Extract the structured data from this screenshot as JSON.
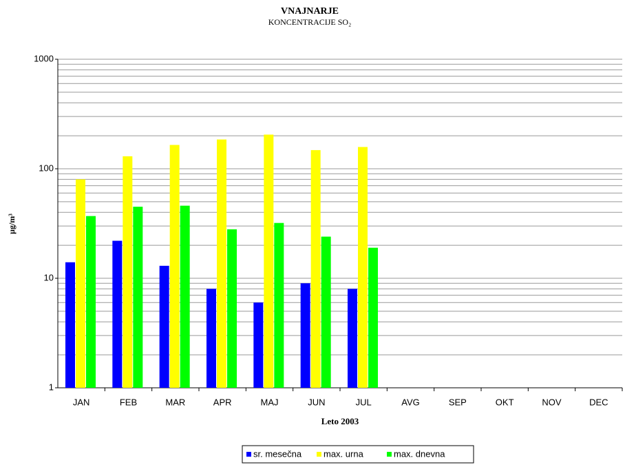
{
  "chart_data": {
    "type": "bar",
    "title": "VNAJNARJE",
    "subtitle": "KONCENTRACIJE SO₂",
    "x_label": "Leto 2003",
    "y_label": "μg/m³",
    "categories": [
      "JAN",
      "FEB",
      "MAR",
      "APR",
      "MAJ",
      "JUN",
      "JUL",
      "AVG",
      "SEP",
      "OKT",
      "NOV",
      "DEC"
    ],
    "series": [
      {
        "name": "sr. mesečna",
        "color": "#0000ff",
        "values": [
          14,
          22,
          13,
          8,
          6,
          9,
          8,
          null,
          null,
          null,
          null,
          null
        ]
      },
      {
        "name": "max. urna",
        "color": "#ffff00",
        "values": [
          80,
          130,
          165,
          185,
          205,
          148,
          158,
          null,
          null,
          null,
          null,
          null
        ]
      },
      {
        "name": "max. dnevna",
        "color": "#00ff00",
        "values": [
          37,
          45,
          46,
          28,
          32,
          24,
          19,
          null,
          null,
          null,
          null,
          null
        ]
      }
    ],
    "y_scale": "log",
    "ylim": [
      1,
      1000
    ],
    "yticks": [
      1,
      10,
      100,
      1000
    ],
    "grid": true,
    "minor_grid": true,
    "legend": "bottom"
  }
}
